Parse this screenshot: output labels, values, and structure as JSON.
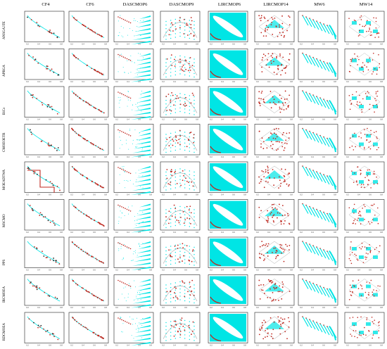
{
  "chart_data": {
    "type": "scatter",
    "title": "",
    "columns": [
      "CF4",
      "CF6",
      "DASCMOP6",
      "DASCMOP9",
      "LIRCMOP6",
      "LIRCMOP14",
      "MW6",
      "MW14"
    ],
    "rows": [
      "ANSGA3TE",
      "APRGA",
      "BiCo",
      "CMOEOETR",
      "MOEADTWA",
      "MSCMO",
      "PPS",
      "IRCMOEA",
      "RDCMOEA"
    ],
    "series": [
      {
        "name": "",
        "role": "feasible-region / true Pareto front",
        "color": "#00e5e5"
      },
      {
        "name": "",
        "role": "obtained solutions",
        "color": "#c0281f"
      }
    ],
    "axis_tick_labels": [
      "0",
      "0.2",
      "0.4",
      "0.6",
      "0.8",
      "1"
    ],
    "grid": false,
    "legend": "none"
  },
  "colors": {
    "cyan": "#00e5e5",
    "red": "#c0281f",
    "frame": "#222222"
  }
}
